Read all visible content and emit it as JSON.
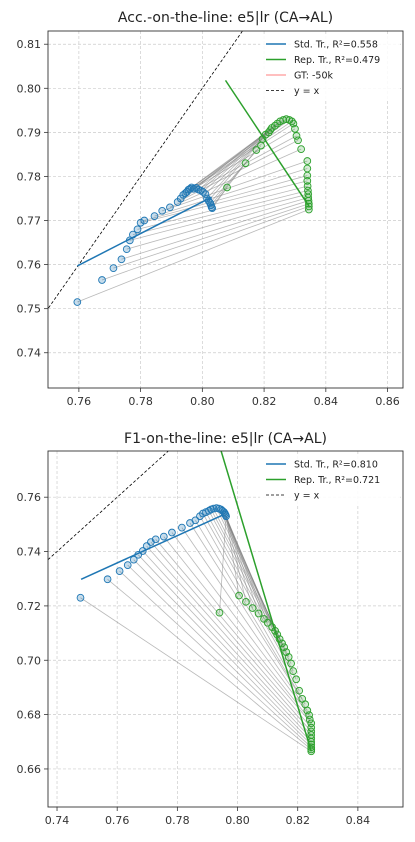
{
  "chart_data": [
    {
      "type": "scatter",
      "title": "Acc.-on-the-line: e5|lr  (CA→AL)",
      "xlim": [
        0.75,
        0.865
      ],
      "ylim": [
        0.732,
        0.813
      ],
      "xticks": [
        "0.76",
        "0.78",
        "0.80",
        "0.82",
        "0.84",
        "0.86"
      ],
      "yticks": [
        "0.74",
        "0.75",
        "0.76",
        "0.77",
        "0.78",
        "0.79",
        "0.80",
        "0.81"
      ],
      "grid": true,
      "legend_position": "top-right",
      "legend": [
        {
          "label": "Std. Tr., R²=0.558",
          "style": "line",
          "color": "#1f77b4"
        },
        {
          "label": "Rep. Tr., R²=0.479",
          "style": "line",
          "color": "#2ca02c"
        },
        {
          "label": "GT: -50k",
          "style": "line",
          "color": "#ffaaaa"
        },
        {
          "label": "y = x",
          "style": "dashed",
          "color": "#000000"
        }
      ],
      "fit_lines": [
        {
          "color": "#1f77b4",
          "x": [
            0.7595,
            0.803
          ],
          "y": [
            0.7597,
            0.7753
          ]
        },
        {
          "color": "#2ca02c",
          "x": [
            0.8075,
            0.8345
          ],
          "y": [
            0.8018,
            0.7733
          ]
        }
      ],
      "std_points": [
        [
          0.7595,
          0.7515
        ],
        [
          0.7675,
          0.7565
        ],
        [
          0.7712,
          0.7592
        ],
        [
          0.7738,
          0.7612
        ],
        [
          0.7755,
          0.7635
        ],
        [
          0.7765,
          0.7655
        ],
        [
          0.7775,
          0.7668
        ],
        [
          0.779,
          0.768
        ],
        [
          0.78,
          0.7695
        ],
        [
          0.7812,
          0.77
        ],
        [
          0.7845,
          0.771
        ],
        [
          0.787,
          0.7722
        ],
        [
          0.7895,
          0.773
        ],
        [
          0.792,
          0.7742
        ],
        [
          0.793,
          0.775
        ],
        [
          0.7938,
          0.7758
        ],
        [
          0.7945,
          0.7762
        ],
        [
          0.795,
          0.7765
        ],
        [
          0.7955,
          0.777
        ],
        [
          0.796,
          0.7772
        ],
        [
          0.7965,
          0.7775
        ],
        [
          0.7972,
          0.7772
        ],
        [
          0.798,
          0.7774
        ],
        [
          0.7988,
          0.777
        ],
        [
          0.7995,
          0.7768
        ],
        [
          0.8002,
          0.7765
        ],
        [
          0.801,
          0.776
        ],
        [
          0.8015,
          0.775
        ],
        [
          0.802,
          0.7745
        ],
        [
          0.8025,
          0.774
        ],
        [
          0.8028,
          0.7735
        ],
        [
          0.803,
          0.773
        ],
        [
          0.8032,
          0.7728
        ]
      ],
      "rep_points": [
        [
          0.8345,
          0.7725
        ],
        [
          0.8345,
          0.7732
        ],
        [
          0.8345,
          0.7738
        ],
        [
          0.8344,
          0.7745
        ],
        [
          0.8343,
          0.7752
        ],
        [
          0.8343,
          0.776
        ],
        [
          0.8342,
          0.7768
        ],
        [
          0.8341,
          0.7778
        ],
        [
          0.834,
          0.779
        ],
        [
          0.834,
          0.7802
        ],
        [
          0.834,
          0.7818
        ],
        [
          0.834,
          0.7835
        ],
        [
          0.832,
          0.7862
        ],
        [
          0.831,
          0.7882
        ],
        [
          0.8305,
          0.7892
        ],
        [
          0.83,
          0.7908
        ],
        [
          0.8295,
          0.792
        ],
        [
          0.829,
          0.7925
        ],
        [
          0.8282,
          0.7928
        ],
        [
          0.8272,
          0.793
        ],
        [
          0.8262,
          0.7928
        ],
        [
          0.8252,
          0.7925
        ],
        [
          0.8243,
          0.792
        ],
        [
          0.8235,
          0.7915
        ],
        [
          0.8225,
          0.791
        ],
        [
          0.822,
          0.7905
        ],
        [
          0.8215,
          0.79
        ],
        [
          0.8205,
          0.7895
        ],
        [
          0.8195,
          0.7885
        ],
        [
          0.819,
          0.787
        ],
        [
          0.8175,
          0.786
        ],
        [
          0.814,
          0.783
        ],
        [
          0.808,
          0.7775
        ]
      ]
    },
    {
      "type": "scatter",
      "title": "F1-on-the-line: e5|lr  (CA→AL)",
      "xlim": [
        0.737,
        0.855
      ],
      "ylim": [
        0.646,
        0.777
      ],
      "xticks": [
        "0.74",
        "0.76",
        "0.78",
        "0.80",
        "0.82",
        "0.84"
      ],
      "yticks": [
        "0.66",
        "0.68",
        "0.70",
        "0.72",
        "0.74",
        "0.76"
      ],
      "grid": true,
      "legend_position": "top-right",
      "legend": [
        {
          "label": "Std. Tr., R²=0.810",
          "style": "line",
          "color": "#1f77b4"
        },
        {
          "label": "Rep. Tr., R²=0.721",
          "style": "line",
          "color": "#2ca02c"
        },
        {
          "label": "y = x",
          "style": "dashed",
          "color": "#000000"
        }
      ],
      "fit_lines": [
        {
          "color": "#1f77b4",
          "x": [
            0.748,
            0.795
          ],
          "y": [
            0.7298,
            0.7534
          ]
        },
        {
          "color": "#2ca02c",
          "x": [
            0.794,
            0.8245
          ],
          "y": [
            0.779,
            0.6665
          ]
        }
      ],
      "std_points": [
        [
          0.7478,
          0.723
        ],
        [
          0.7568,
          0.7298
        ],
        [
          0.7608,
          0.7328
        ],
        [
          0.7635,
          0.735
        ],
        [
          0.7655,
          0.737
        ],
        [
          0.767,
          0.7388
        ],
        [
          0.7685,
          0.7402
        ],
        [
          0.7698,
          0.742
        ],
        [
          0.7712,
          0.7435
        ],
        [
          0.7728,
          0.7445
        ],
        [
          0.7755,
          0.7455
        ],
        [
          0.7782,
          0.747
        ],
        [
          0.7815,
          0.7488
        ],
        [
          0.7842,
          0.7505
        ],
        [
          0.786,
          0.7515
        ],
        [
          0.7875,
          0.753
        ],
        [
          0.7885,
          0.754
        ],
        [
          0.7895,
          0.7545
        ],
        [
          0.7905,
          0.755
        ],
        [
          0.7912,
          0.7555
        ],
        [
          0.792,
          0.7558
        ],
        [
          0.793,
          0.756
        ],
        [
          0.7938,
          0.7558
        ],
        [
          0.7945,
          0.7555
        ],
        [
          0.795,
          0.755
        ],
        [
          0.7955,
          0.7545
        ],
        [
          0.7958,
          0.754
        ],
        [
          0.796,
          0.7535
        ],
        [
          0.7962,
          0.753
        ]
      ],
      "rep_points": [
        [
          0.8245,
          0.6665
        ],
        [
          0.8245,
          0.6672
        ],
        [
          0.8245,
          0.668
        ],
        [
          0.8245,
          0.669
        ],
        [
          0.8245,
          0.67
        ],
        [
          0.8245,
          0.6712
        ],
        [
          0.8245,
          0.6725
        ],
        [
          0.8245,
          0.6738
        ],
        [
          0.8245,
          0.6752
        ],
        [
          0.8245,
          0.6768
        ],
        [
          0.824,
          0.6782
        ],
        [
          0.8238,
          0.6798
        ],
        [
          0.8232,
          0.6815
        ],
        [
          0.8225,
          0.6838
        ],
        [
          0.8215,
          0.6858
        ],
        [
          0.8205,
          0.6888
        ],
        [
          0.8195,
          0.693
        ],
        [
          0.8185,
          0.696
        ],
        [
          0.8178,
          0.6988
        ],
        [
          0.817,
          0.7012
        ],
        [
          0.8162,
          0.703
        ],
        [
          0.8155,
          0.7048
        ],
        [
          0.8148,
          0.7062
        ],
        [
          0.814,
          0.7078
        ],
        [
          0.8132,
          0.7095
        ],
        [
          0.8125,
          0.7108
        ],
        [
          0.8115,
          0.7122
        ],
        [
          0.81,
          0.7138
        ],
        [
          0.8088,
          0.7152
        ],
        [
          0.807,
          0.7172
        ],
        [
          0.805,
          0.7192
        ],
        [
          0.8028,
          0.7215
        ],
        [
          0.8005,
          0.7238
        ],
        [
          0.794,
          0.7175
        ]
      ]
    }
  ]
}
